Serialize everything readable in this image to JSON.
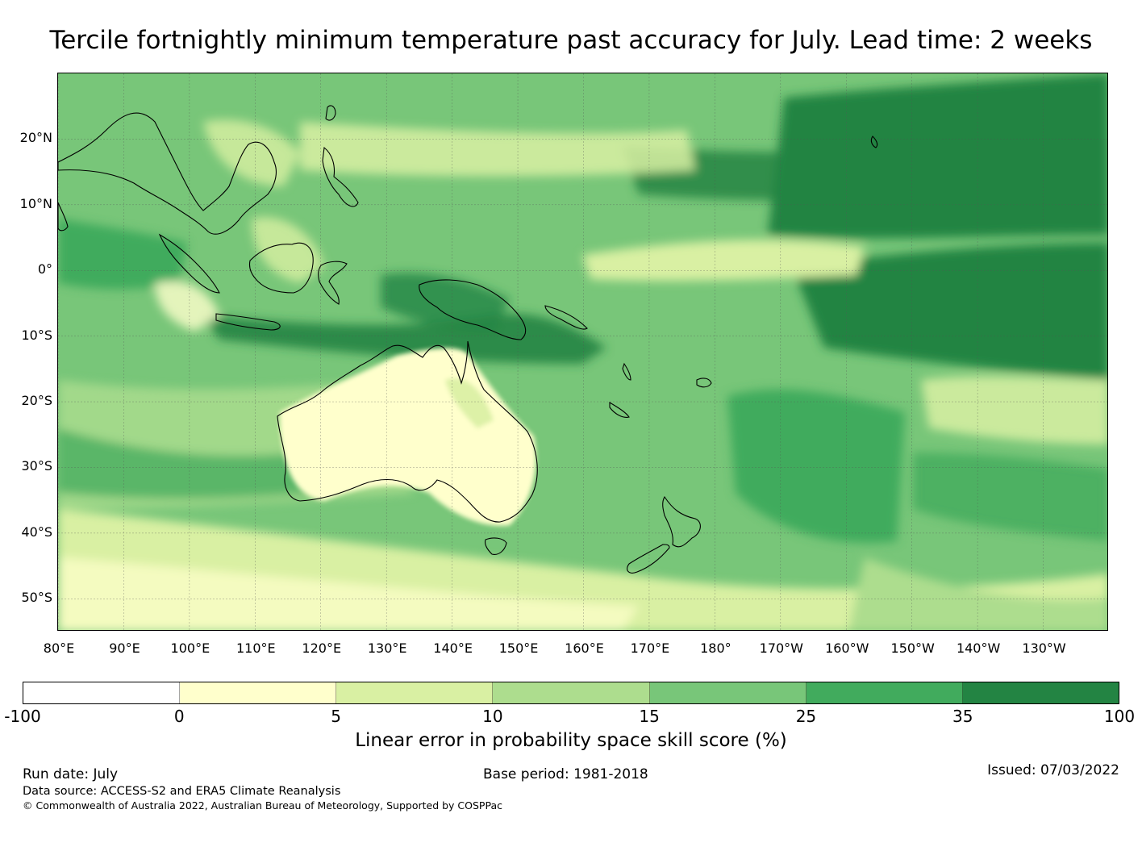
{
  "title": "Tercile fortnightly minimum temperature past accuracy for July. Lead time: 2 weeks",
  "map": {
    "lat_labels": [
      "20°N",
      "10°N",
      "0°",
      "10°S",
      "20°S",
      "30°S",
      "40°S",
      "50°S"
    ],
    "lon_labels": [
      "80°E",
      "90°E",
      "100°E",
      "110°E",
      "120°E",
      "130°E",
      "140°E",
      "150°E",
      "160°E",
      "170°E",
      "180°",
      "170°W",
      "160°W",
      "150°W",
      "140°W",
      "130°W"
    ],
    "extent": {
      "lon_min": 80,
      "lon_max": 240,
      "lat_min": -55,
      "lat_max": 30
    },
    "gridlines": true,
    "projection": "PlateCarree",
    "region": "Indo-Pacific, Australia and New Zealand"
  },
  "colorbar": {
    "label": "Linear error in probability space skill score (%)",
    "ticks": [
      "-100",
      "0",
      "5",
      "10",
      "15",
      "25",
      "35",
      "100"
    ],
    "colors": [
      "#ffffff",
      "#ffffcc",
      "#d9f0a3",
      "#addd8e",
      "#78c679",
      "#41ab5d",
      "#238443"
    ]
  },
  "footer": {
    "run_date": "Run date: July",
    "base_period": "Base period: 1981-2018",
    "issued": "Issued: 07/03/2022",
    "data_source": "Data source: ACCESS-S2 and ERA5 Climate Reanalysis",
    "copyright": "© Commonwealth of Australia 2022, Australian Bureau of Meteorology, Supported by COSPPac"
  }
}
